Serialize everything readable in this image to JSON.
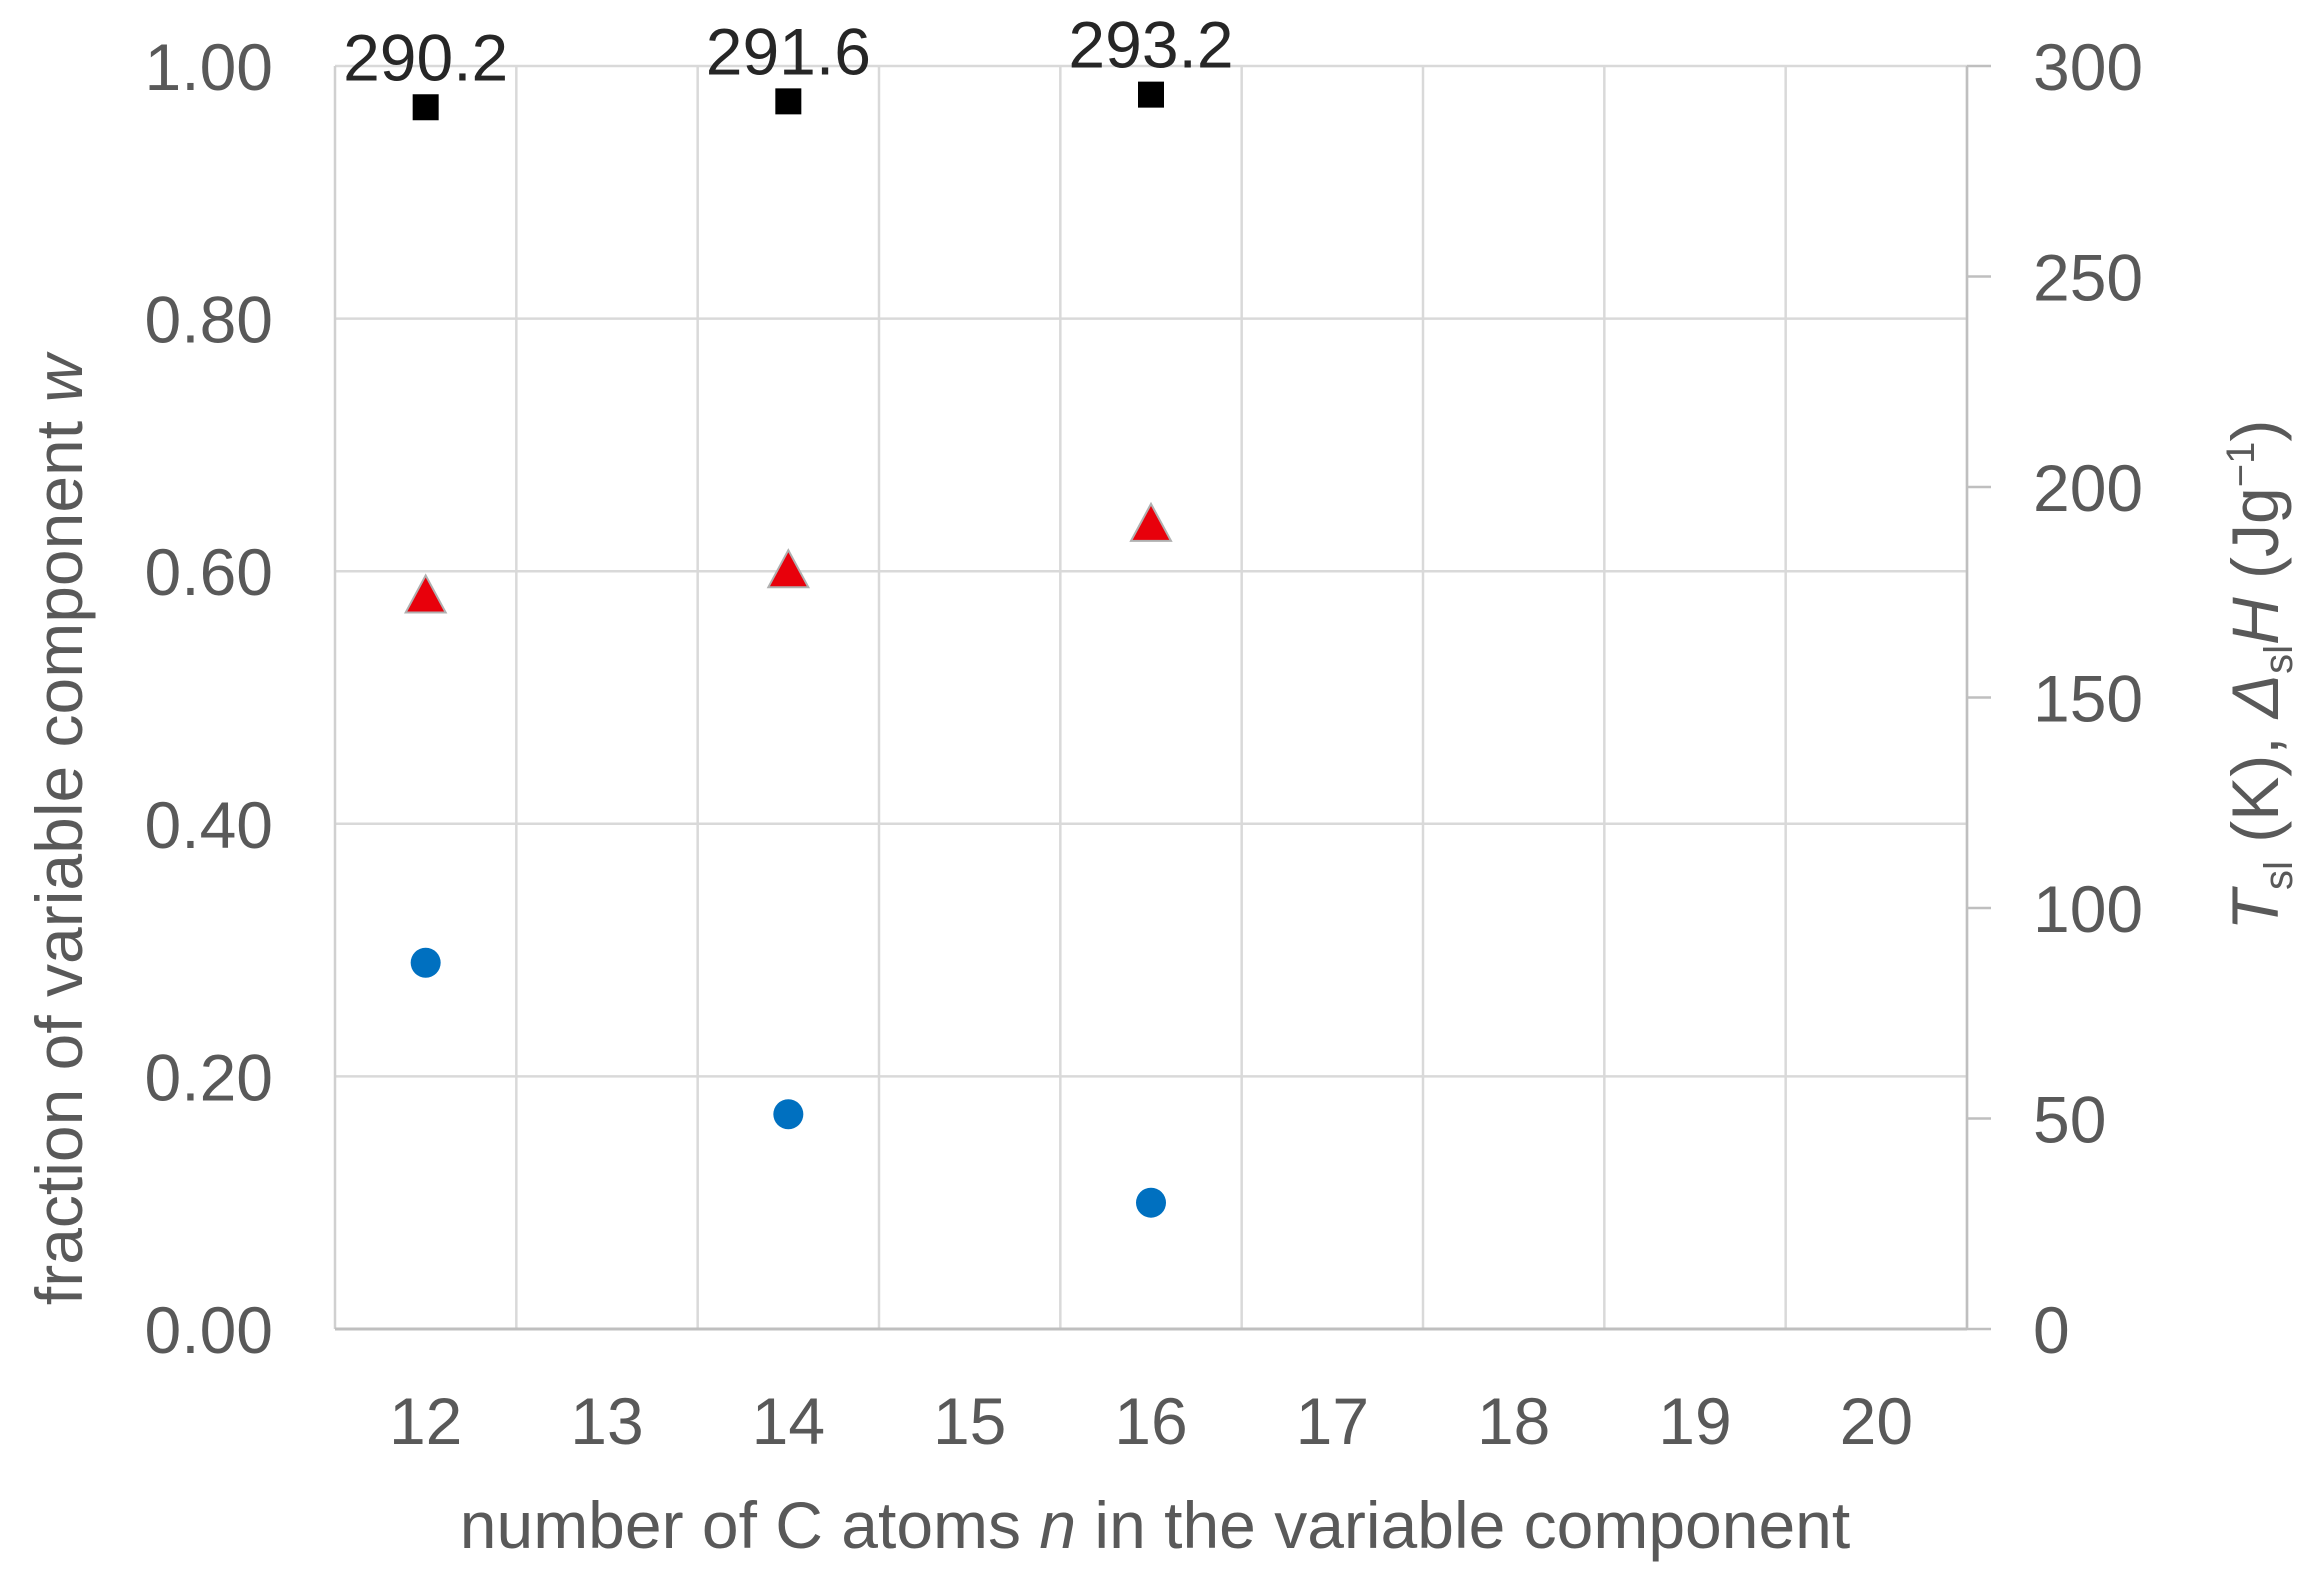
{
  "chart_data": {
    "type": "scatter",
    "x_categories": [
      "12",
      "13",
      "14",
      "15",
      "16",
      "17",
      "18",
      "19",
      "20"
    ],
    "xlabel_prefix": "number of C atoms ",
    "xlabel_var": "n",
    "xlabel_suffix": " in the variable component",
    "ylabel_left_prefix": "fraction of variable component ",
    "ylabel_left_var": "w",
    "ylim_left": [
      0,
      1
    ],
    "yticks_left": [
      "0.00",
      "0.20",
      "0.40",
      "0.60",
      "0.80",
      "1.00"
    ],
    "ylabel_right": {
      "t": "T",
      "t_sub": "sl",
      "t_unit": " (K), ",
      "delta": "Δ",
      "delta_sub": "sl",
      "h": "H",
      "h_unit": " (Jg",
      "h_exp": "−1",
      "close": ")"
    },
    "ylim_right": [
      0,
      300
    ],
    "yticks_right": [
      "0",
      "50",
      "100",
      "150",
      "200",
      "250",
      "300"
    ],
    "grid": true,
    "series": [
      {
        "axis": "right",
        "marker": "square",
        "color": "#000000",
        "points": [
          {
            "x": 12,
            "y": 290.2,
            "label": "290.2"
          },
          {
            "x": 14,
            "y": 291.6,
            "label": "291.6"
          },
          {
            "x": 16,
            "y": 293.2,
            "label": "293.2"
          }
        ]
      },
      {
        "axis": "right",
        "marker": "triangle",
        "color": "#e8000b",
        "points": [
          {
            "x": 12,
            "y": 174
          },
          {
            "x": 14,
            "y": 180
          },
          {
            "x": 16,
            "y": 191
          }
        ]
      },
      {
        "axis": "left",
        "marker": "circle",
        "color": "#0070c0",
        "points": [
          {
            "x": 12,
            "y": 0.29
          },
          {
            "x": 14,
            "y": 0.17
          },
          {
            "x": 16,
            "y": 0.1
          }
        ]
      }
    ]
  }
}
